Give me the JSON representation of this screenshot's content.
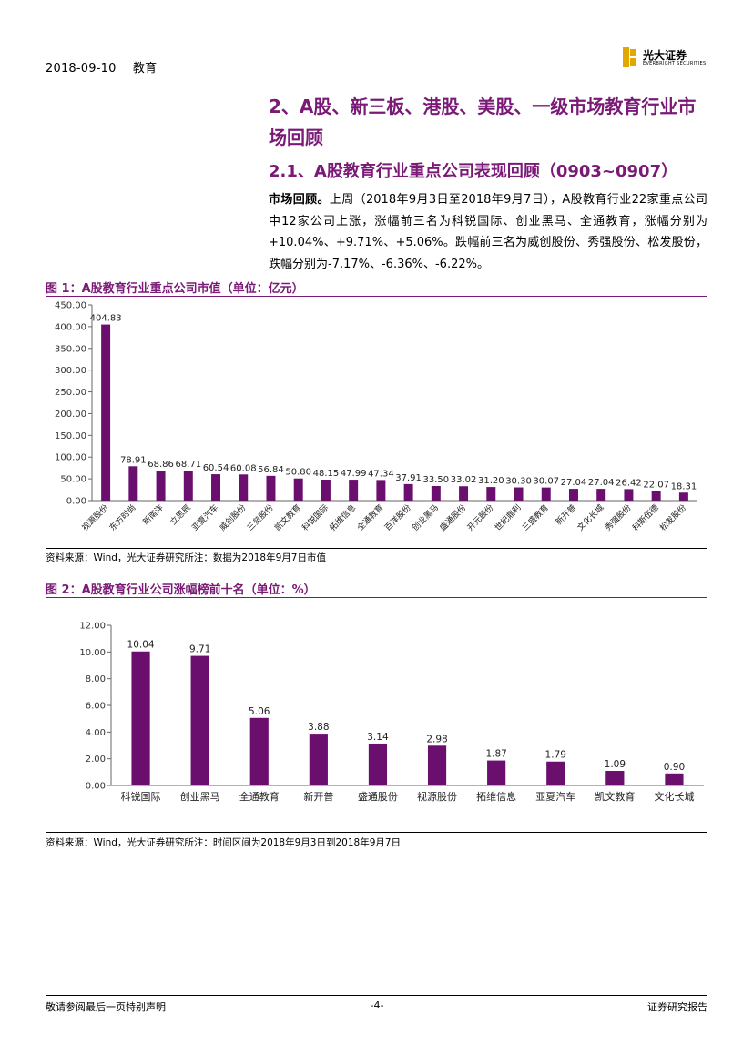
{
  "header": {
    "date": "2018-09-10",
    "section": "教育",
    "logo_cn": "光大证券",
    "logo_en": "EVERBRIGHT SECURITIES",
    "brand_color": "#e0a800"
  },
  "section_heading": "2、A股、新三板、港股、美股、一级市场教育行业市场回顾",
  "sub_heading": "2.1、A股教育行业重点公司表现回顾（0903~0907）",
  "paragraph": {
    "lead": "市场回顾。",
    "text": "上周（2018年9月3日至2018年9月7日），A股教育行业22家重点公司中12家公司上涨，涨幅前三名为科锐国际、创业黑马、全通教育，涨幅分别为+10.04%、+9.71%、+5.06%。跌幅前三名为威创股份、秀强股份、松发股份，跌幅分别为-7.17%、-6.36%、-6.22%。"
  },
  "figure1": {
    "title": "图 1：A股教育行业重点公司市值（单位：亿元）",
    "source": "资料来源：Wind，光大证券研究所注：数据为2018年9月7日市值"
  },
  "figure2": {
    "title": "图 2：A股教育行业公司涨幅榜前十名（单位：%）",
    "source": "资料来源：Wind，光大证券研究所注：时间区间为2018年9月3日到2018年9月7日"
  },
  "footer": {
    "left": "敬请参阅最后一页特别声明",
    "center": "-4-",
    "right": "证券研究报告"
  },
  "chart_data": [
    {
      "type": "bar",
      "color": "#6a0f6e",
      "categories": [
        "视源股份",
        "东方时尚",
        "新南洋",
        "立思辰",
        "亚夏汽车",
        "威创股份",
        "三垒股份",
        "凯文教育",
        "科锐国际",
        "拓维信息",
        "全通教育",
        "百洋股份",
        "创业黑马",
        "盛通股份",
        "开元股份",
        "世纪鼎利",
        "三盛教育",
        "新开普",
        "文化长城",
        "秀强股份",
        "科斯伍德",
        "松发股份"
      ],
      "values": [
        404.83,
        78.91,
        68.86,
        68.71,
        60.54,
        60.08,
        56.84,
        50.8,
        48.15,
        47.99,
        47.34,
        37.91,
        33.5,
        33.02,
        31.2,
        30.3,
        30.07,
        27.04,
        27.04,
        26.42,
        22.07,
        18.31
      ],
      "value_labels": [
        "404.83",
        "78.91",
        "68.86",
        "68.71",
        "60.54",
        "60.08",
        "56.84",
        "50.80",
        "48.15",
        "47.99",
        "47.34",
        "37.91",
        "33.50",
        "33.02",
        "31.20",
        "30.30",
        "30.07",
        "27.04",
        "27.04",
        "26.42",
        "22.07",
        "18.31"
      ],
      "ylim": [
        0,
        450
      ],
      "yticks": [
        "0.00",
        "50.00",
        "100.00",
        "150.00",
        "200.00",
        "250.00",
        "300.00",
        "350.00",
        "400.00",
        "450.00"
      ],
      "grid": false
    },
    {
      "type": "bar",
      "color": "#6a0f6e",
      "categories": [
        "科锐国际",
        "创业黑马",
        "全通教育",
        "新开普",
        "盛通股份",
        "视源股份",
        "拓维信息",
        "亚夏汽车",
        "凯文教育",
        "文化长城"
      ],
      "values": [
        10.04,
        9.71,
        5.06,
        3.88,
        3.14,
        2.98,
        1.87,
        1.79,
        1.09,
        0.9
      ],
      "value_labels": [
        "10.04",
        "9.71",
        "5.06",
        "3.88",
        "3.14",
        "2.98",
        "1.87",
        "1.79",
        "1.09",
        "0.90"
      ],
      "ylim": [
        0,
        12
      ],
      "yticks": [
        "0.00",
        "2.00",
        "4.00",
        "6.00",
        "8.00",
        "10.00",
        "12.00"
      ],
      "grid": false
    }
  ]
}
